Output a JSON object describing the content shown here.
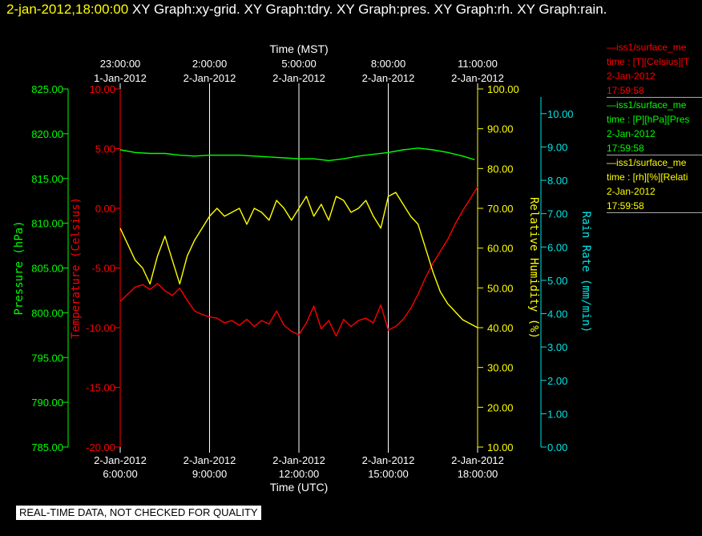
{
  "header": {
    "timestamp": "2-jan-2012,18:00:00",
    "graphs": "XY Graph:xy-grid.  XY Graph:tdry.  XY Graph:pres.  XY Graph:rh.  XY Graph:rain."
  },
  "legend": [
    {
      "line1": "—iss1/surface_me",
      "line2": "time : [T][Celsius][T",
      "line3": "2-Jan-2012",
      "line4": "17:59:58",
      "color": "#ff0000"
    },
    {
      "line1": "—iss1/surface_me",
      "line2": "time : [P][hPa][Pres",
      "line3": "2-Jan-2012",
      "line4": "17:59:58",
      "color": "#00ff00"
    },
    {
      "line1": "—iss1/surface_me",
      "line2": "time : [rh][%][Relati",
      "line3": "2-Jan-2012",
      "line4": "17:59:58",
      "color": "#ffff00"
    }
  ],
  "notice": "REAL-TIME DATA, NOT CHECKED FOR QUALITY",
  "chart_data": {
    "type": "line",
    "grid": true,
    "x_bottom": {
      "label": "Time (UTC)",
      "range_hours_utc": [
        6,
        18
      ],
      "ticks": [
        {
          "date": "2-Jan-2012",
          "time": "6:00:00"
        },
        {
          "date": "2-Jan-2012",
          "time": "9:00:00"
        },
        {
          "date": "2-Jan-2012",
          "time": "12:00:00"
        },
        {
          "date": "2-Jan-2012",
          "time": "15:00:00"
        },
        {
          "date": "2-Jan-2012",
          "time": "18:00:00"
        }
      ]
    },
    "x_top": {
      "label": "Time (MST)",
      "ticks": [
        {
          "time": "23:00:00",
          "date": "1-Jan-2012"
        },
        {
          "time": "2:00:00",
          "date": "2-Jan-2012"
        },
        {
          "time": "5:00:00",
          "date": "2-Jan-2012"
        },
        {
          "time": "8:00:00",
          "date": "2-Jan-2012"
        },
        {
          "time": "11:00:00",
          "date": "2-Jan-2012"
        }
      ]
    },
    "axes": {
      "pressure": {
        "label": "Pressure (hPa)",
        "color": "#00ff00",
        "range": [
          785,
          825
        ],
        "ticks": [
          "825.00",
          "820.00",
          "815.00",
          "810.00",
          "805.00",
          "800.00",
          "795.00",
          "790.00",
          "785.00"
        ]
      },
      "temperature": {
        "label": "Temperature (Celsius)",
        "color": "#ff0000",
        "range": [
          -20,
          10
        ],
        "ticks": [
          "10.00",
          "5.00",
          "0.00",
          "-5.00",
          "-10.00",
          "-15.00",
          "-20.00"
        ]
      },
      "humidity": {
        "label": "Relative Humidity (%)",
        "color": "#ffff00",
        "range": [
          10,
          100
        ],
        "ticks": [
          "100.00",
          "90.00",
          "80.00",
          "70.00",
          "60.00",
          "50.00",
          "40.00",
          "30.00",
          "20.00",
          "10.00"
        ]
      },
      "rain": {
        "label": "Rain Rate (mm/min)",
        "color": "#00e5e5",
        "range": [
          0,
          10.5
        ],
        "ticks": [
          "10.00",
          "9.00",
          "8.00",
          "7.00",
          "6.00",
          "5.00",
          "4.00",
          "3.00",
          "2.00",
          "1.00",
          "0.00"
        ]
      }
    },
    "series": [
      {
        "axis": "pressure",
        "color": "#00ff00",
        "x": [
          6.0,
          6.5,
          7.0,
          7.5,
          8.0,
          8.5,
          9.0,
          9.5,
          10.0,
          10.5,
          11.0,
          11.5,
          12.0,
          12.5,
          13.0,
          13.5,
          14.0,
          14.5,
          15.0,
          15.5,
          16.0,
          16.5,
          17.0,
          17.5,
          17.9
        ],
        "y": [
          818.2,
          817.9,
          817.8,
          817.8,
          817.6,
          817.5,
          817.6,
          817.6,
          817.6,
          817.5,
          817.4,
          817.3,
          817.2,
          817.2,
          817.0,
          817.2,
          817.5,
          817.7,
          817.9,
          818.2,
          818.4,
          818.2,
          817.9,
          817.5,
          817.1
        ]
      },
      {
        "axis": "temperature",
        "color": "#ff0000",
        "x": [
          6.0,
          6.25,
          6.5,
          6.75,
          7.0,
          7.25,
          7.5,
          7.75,
          8.0,
          8.25,
          8.5,
          8.75,
          9.0,
          9.25,
          9.5,
          9.75,
          10.0,
          10.25,
          10.5,
          10.75,
          11.0,
          11.25,
          11.5,
          11.75,
          12.0,
          12.25,
          12.5,
          12.75,
          13.0,
          13.25,
          13.5,
          13.75,
          14.0,
          14.25,
          14.5,
          14.75,
          15.0,
          15.25,
          15.5,
          15.75,
          16.0,
          16.25,
          16.5,
          16.75,
          17.0,
          17.25,
          17.5,
          17.75,
          18.0
        ],
        "y": [
          -7.8,
          -7.2,
          -6.6,
          -6.4,
          -6.8,
          -6.3,
          -6.9,
          -7.3,
          -6.7,
          -7.7,
          -8.6,
          -8.9,
          -9.1,
          -9.2,
          -9.6,
          -9.4,
          -9.8,
          -9.3,
          -9.9,
          -9.4,
          -9.7,
          -8.6,
          -9.8,
          -10.3,
          -10.6,
          -9.6,
          -8.2,
          -10.1,
          -9.4,
          -10.7,
          -9.3,
          -9.9,
          -9.4,
          -9.2,
          -9.6,
          -8.1,
          -10.2,
          -9.9,
          -9.3,
          -8.4,
          -7.2,
          -5.8,
          -4.6,
          -3.6,
          -2.6,
          -1.3,
          -0.2,
          0.8,
          1.8
        ]
      },
      {
        "axis": "humidity",
        "color": "#ffff00",
        "x": [
          6.0,
          6.25,
          6.5,
          6.75,
          7.0,
          7.25,
          7.5,
          7.75,
          8.0,
          8.25,
          8.5,
          8.75,
          9.0,
          9.25,
          9.5,
          9.75,
          10.0,
          10.25,
          10.5,
          10.75,
          11.0,
          11.25,
          11.5,
          11.75,
          12.0,
          12.25,
          12.5,
          12.75,
          13.0,
          13.25,
          13.5,
          13.75,
          14.0,
          14.25,
          14.5,
          14.75,
          15.0,
          15.25,
          15.5,
          15.75,
          16.0,
          16.25,
          16.5,
          16.75,
          17.0,
          17.25,
          17.5,
          17.75,
          18.0
        ],
        "y": [
          65,
          61,
          57,
          55,
          51,
          58,
          63,
          57,
          51,
          58,
          62,
          65,
          68,
          70,
          68,
          69,
          70,
          66,
          70,
          69,
          67,
          72,
          70,
          67,
          70,
          73,
          68,
          71,
          67,
          73,
          72,
          69,
          70,
          72,
          68,
          65,
          73,
          74,
          71,
          68,
          66,
          60,
          54,
          49,
          46,
          44,
          42,
          41,
          40
        ]
      }
    ]
  }
}
